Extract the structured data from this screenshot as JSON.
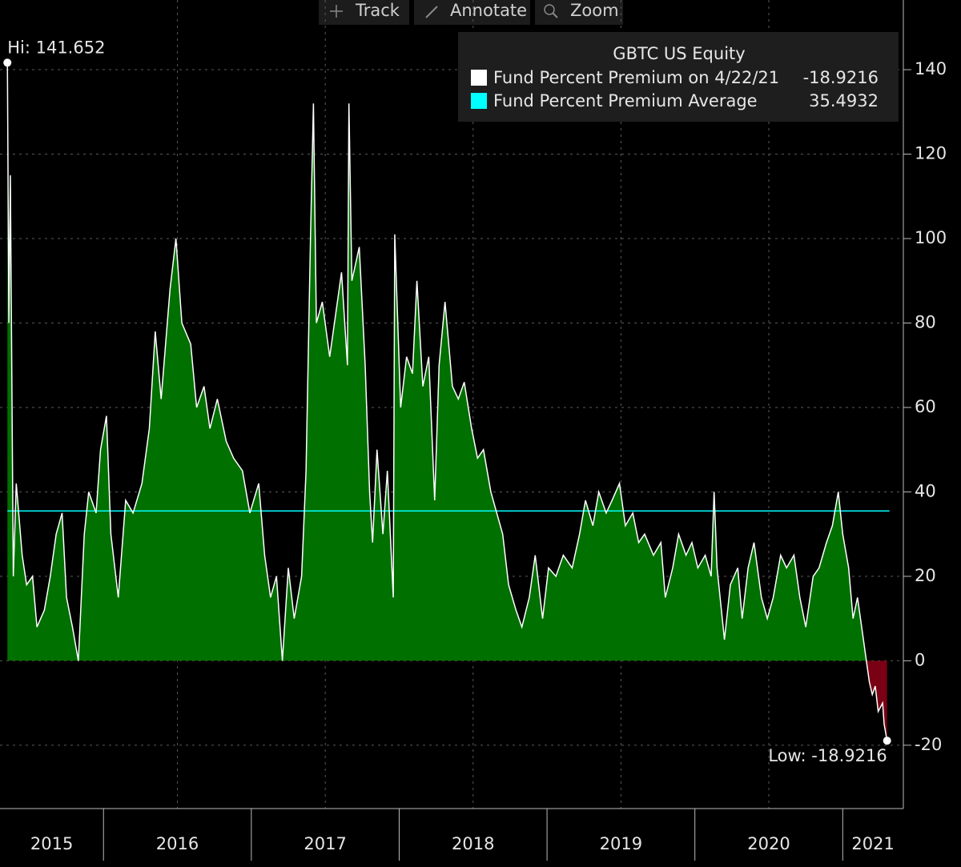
{
  "toolbar": [
    "Track",
    "Annotate",
    "Zoom"
  ],
  "chart_data": {
    "type": "area",
    "title": "GBTC US Equity",
    "xlim": [
      2015.3,
      2021.41
    ],
    "ylim": [
      -35,
      156.5
    ],
    "yticks": [
      -20,
      0,
      20,
      40,
      60,
      80,
      100,
      120,
      140
    ],
    "grid": true,
    "year_boundaries": [
      2016,
      2017,
      2018,
      2019,
      2020,
      2021
    ],
    "year_labels": [
      "2015",
      "2016",
      "2017",
      "2018",
      "2019",
      "2020",
      "2021"
    ],
    "series": [
      {
        "name": "Fund Percent Premium on 4/22/21",
        "legend_value": "-18.9216",
        "color": "#ffffff",
        "positive_fill": "#007000",
        "negative_fill": "#7a0014",
        "x": [
          2015.35,
          2015.36,
          2015.37,
          2015.39,
          2015.41,
          2015.45,
          2015.48,
          2015.52,
          2015.55,
          2015.6,
          2015.64,
          2015.68,
          2015.72,
          2015.75,
          2015.79,
          2015.83,
          2015.87,
          2015.9,
          2015.95,
          2015.98,
          2016.02,
          2016.05,
          2016.1,
          2016.15,
          2016.2,
          2016.26,
          2016.31,
          2016.35,
          2016.39,
          2016.45,
          2016.49,
          2016.53,
          2016.59,
          2016.63,
          2016.68,
          2016.72,
          2016.77,
          2016.83,
          2016.88,
          2016.94,
          2016.99,
          2017.05,
          2017.09,
          2017.13,
          2017.17,
          2017.21,
          2017.25,
          2017.29,
          2017.34,
          2017.37,
          2017.4,
          2017.42,
          2017.44,
          2017.48,
          2017.53,
          2017.57,
          2017.61,
          2017.65,
          2017.66,
          2017.68,
          2017.73,
          2017.77,
          2017.8,
          2017.82,
          2017.85,
          2017.89,
          2017.92,
          2017.96,
          2017.97,
          2018.01,
          2018.05,
          2018.09,
          2018.12,
          2018.16,
          2018.2,
          2018.24,
          2018.27,
          2018.31,
          2018.36,
          2018.4,
          2018.44,
          2018.49,
          2018.53,
          2018.57,
          2018.62,
          2018.66,
          2018.7,
          2018.74,
          2018.79,
          2018.83,
          2018.88,
          2018.92,
          2018.97,
          2019.01,
          2019.06,
          2019.11,
          2019.17,
          2019.22,
          2019.26,
          2019.31,
          2019.35,
          2019.4,
          2019.44,
          2019.49,
          2019.53,
          2019.58,
          2019.62,
          2019.66,
          2019.72,
          2019.77,
          2019.8,
          2019.85,
          2019.89,
          2019.94,
          2019.98,
          2020.02,
          2020.07,
          2020.11,
          2020.13,
          2020.15,
          2020.2,
          2020.24,
          2020.29,
          2020.32,
          2020.36,
          2020.4,
          2020.45,
          2020.49,
          2020.53,
          2020.58,
          2020.62,
          2020.67,
          2020.71,
          2020.75,
          2020.8,
          2020.84,
          2020.89,
          2020.93,
          2020.97,
          2021.0,
          2021.04,
          2021.07,
          2021.1,
          2021.14,
          2021.16,
          2021.18,
          2021.2,
          2021.22,
          2021.24,
          2021.27,
          2021.28,
          2021.3
        ],
        "values": [
          141.652,
          80,
          115,
          20,
          42,
          25,
          18,
          20,
          8,
          12,
          20,
          30,
          35,
          15,
          8,
          0,
          30,
          40,
          35,
          50,
          58,
          30,
          15,
          38,
          35,
          42,
          55,
          78,
          62,
          88,
          100,
          80,
          75,
          60,
          65,
          55,
          62,
          52,
          48,
          45,
          35,
          42,
          25,
          15,
          20,
          0,
          22,
          10,
          20,
          45,
          100,
          132,
          80,
          85,
          72,
          82,
          92,
          70,
          132,
          90,
          98,
          70,
          40,
          28,
          50,
          30,
          45,
          15,
          101,
          60,
          72,
          68,
          90,
          65,
          72,
          38,
          70,
          85,
          65,
          62,
          66,
          55,
          48,
          50,
          40,
          35,
          30,
          18,
          12,
          8,
          15,
          25,
          10,
          22,
          20,
          25,
          22,
          30,
          38,
          32,
          40,
          35,
          38,
          42,
          32,
          35,
          28,
          30,
          25,
          28,
          15,
          22,
          30,
          25,
          28,
          22,
          25,
          20,
          40,
          22,
          5,
          18,
          22,
          10,
          22,
          28,
          15,
          10,
          15,
          25,
          22,
          25,
          15,
          8,
          20,
          22,
          28,
          32,
          40,
          30,
          22,
          10,
          15,
          5,
          0,
          -5,
          -8,
          -6,
          -12,
          -10,
          -15,
          -18.9216
        ]
      },
      {
        "name": "Fund Percent Premium Average",
        "legend_value": "35.4932",
        "color": "#00ffff",
        "value": 35.4932
      }
    ],
    "annotations": [
      {
        "text": "Hi: 141.652",
        "x": 2015.35,
        "y": 141.652
      },
      {
        "text": "Low: -18.9216",
        "x": 2021.3,
        "y": -18.9216
      }
    ]
  }
}
